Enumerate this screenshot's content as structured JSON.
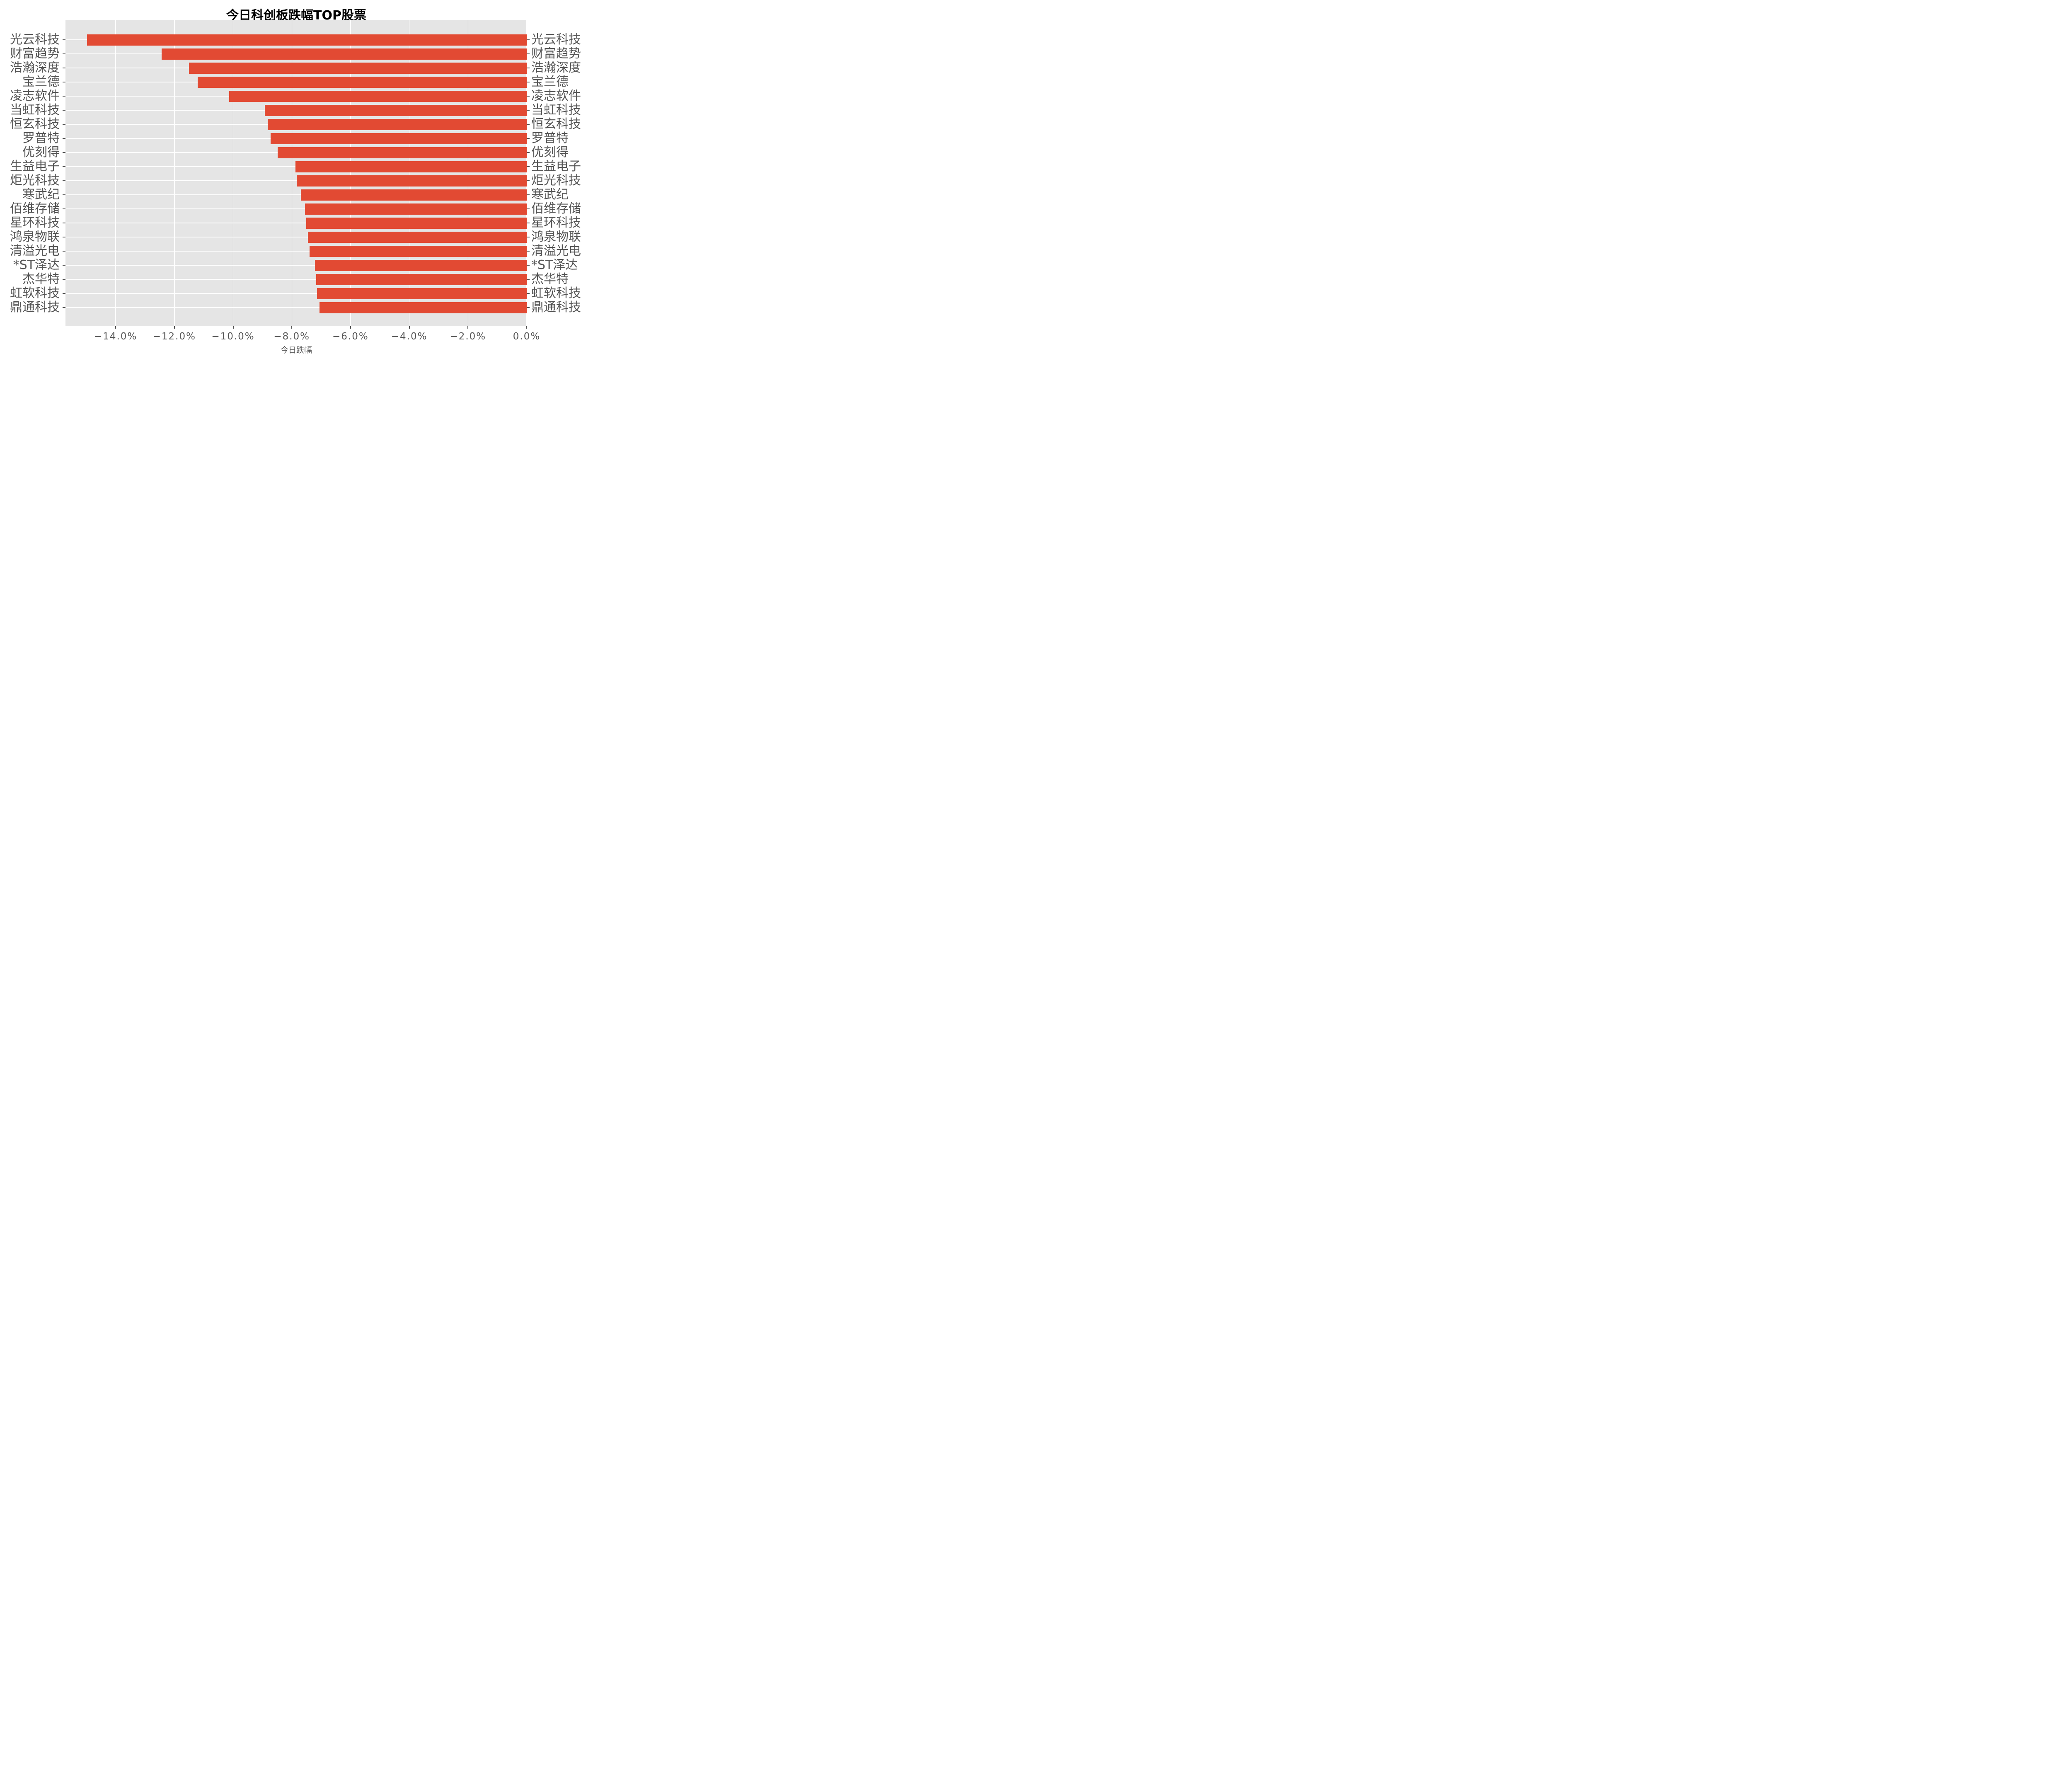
{
  "chart_data": {
    "type": "bar",
    "orientation": "horizontal",
    "title": "今日科创板跌幅TOP股票",
    "xlabel": "今日跌幅",
    "ylabel": "",
    "legend_position": "none",
    "grid": "white major gridlines on gray panel (ggplot style)",
    "categories_axis": "y, labels shown on both left and right sides",
    "categories": [
      "光云科技",
      "财富趋势",
      "浩瀚深度",
      "宝兰德",
      "凌志软件",
      "当虹科技",
      "恒玄科技",
      "罗普特",
      "优刻得",
      "生益电子",
      "炬光科技",
      "寒武纪",
      "佰维存储",
      "星环科技",
      "鸿泉物联",
      "清溢光电",
      "*ST泽达",
      "杰华特",
      "虹软科技",
      "鼎通科技"
    ],
    "values": [
      -14.97,
      -12.44,
      -11.5,
      -11.21,
      -10.13,
      -8.92,
      -8.82,
      -8.73,
      -8.49,
      -7.88,
      -7.84,
      -7.7,
      -7.55,
      -7.51,
      -7.45,
      -7.39,
      -7.22,
      -7.17,
      -7.14,
      -7.06
    ],
    "value_unit": "percent",
    "xlim": [
      -15.71,
      0
    ],
    "x_ticks": [
      {
        "value": -14,
        "label": "−14.0%"
      },
      {
        "value": -12,
        "label": "−12.0%"
      },
      {
        "value": -10,
        "label": "−10.0%"
      },
      {
        "value": -8,
        "label": "−8.0%"
      },
      {
        "value": -6,
        "label": "−6.0%"
      },
      {
        "value": -4,
        "label": "−4.0%"
      },
      {
        "value": -2,
        "label": "−2.0%"
      },
      {
        "value": 0,
        "label": "0.0%"
      }
    ]
  },
  "colors": {
    "bar": "#E24A33",
    "panel_bg": "#E5E5E5",
    "grid": "#FFFFFF",
    "tick_text": "#555555",
    "title_text": "#000000",
    "figure_bg": "#FFFFFF"
  }
}
